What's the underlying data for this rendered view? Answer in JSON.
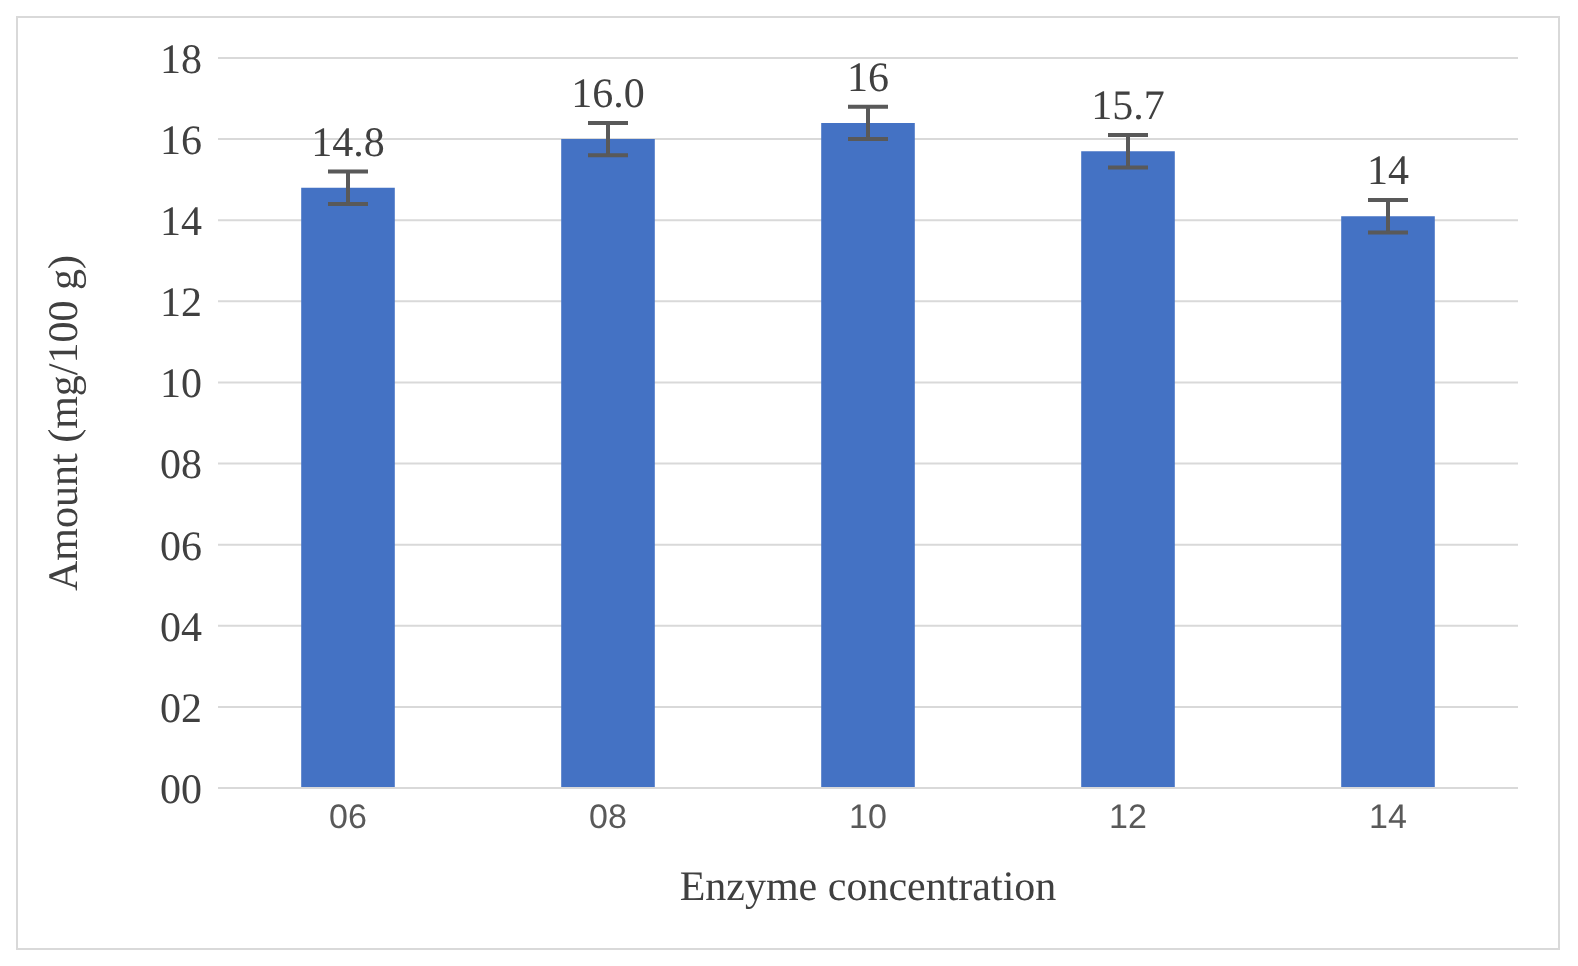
{
  "chart_data": {
    "type": "bar",
    "xlabel": "Enzyme concentration",
    "ylabel": "Amount (mg/100 g)",
    "categories": [
      "06",
      "08",
      "10",
      "12",
      "14"
    ],
    "values": [
      14.8,
      16.0,
      16.4,
      15.7,
      14.1
    ],
    "errors": [
      0.4,
      0.4,
      0.4,
      0.4,
      0.4
    ],
    "value_labels": [
      "14.8",
      "16.0",
      "16",
      "15.7",
      "14"
    ],
    "color": "#4472c4",
    "ylim": [
      0,
      18
    ],
    "yticks": [
      {
        "value": 0,
        "label": "00"
      },
      {
        "value": 2,
        "label": "02"
      },
      {
        "value": 4,
        "label": "04"
      },
      {
        "value": 6,
        "label": "06"
      },
      {
        "value": 8,
        "label": "08"
      },
      10,
      12,
      14,
      16,
      18
    ],
    "grid": "y",
    "legend": false
  }
}
